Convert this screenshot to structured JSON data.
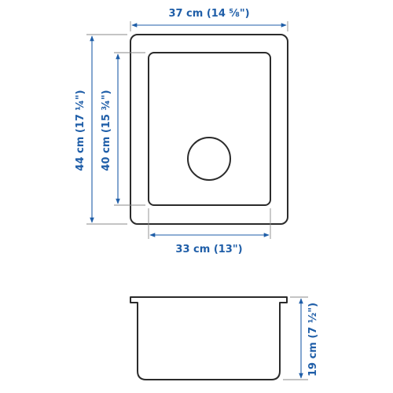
{
  "colors": {
    "dimension": "#1f5ea8",
    "outline": "#2b2b2b",
    "extension": "#8a8a8a",
    "background": "#ffffff"
  },
  "top_view": {
    "outer_width_label": "37 cm (14 ⅝\")",
    "outer_height_label": "44 cm (17 ¼\")",
    "inner_height_label": "40 cm (15 ¾\")",
    "inner_width_label": "33 cm (13\")"
  },
  "side_view": {
    "depth_label": "19 cm (7 ½\")"
  }
}
